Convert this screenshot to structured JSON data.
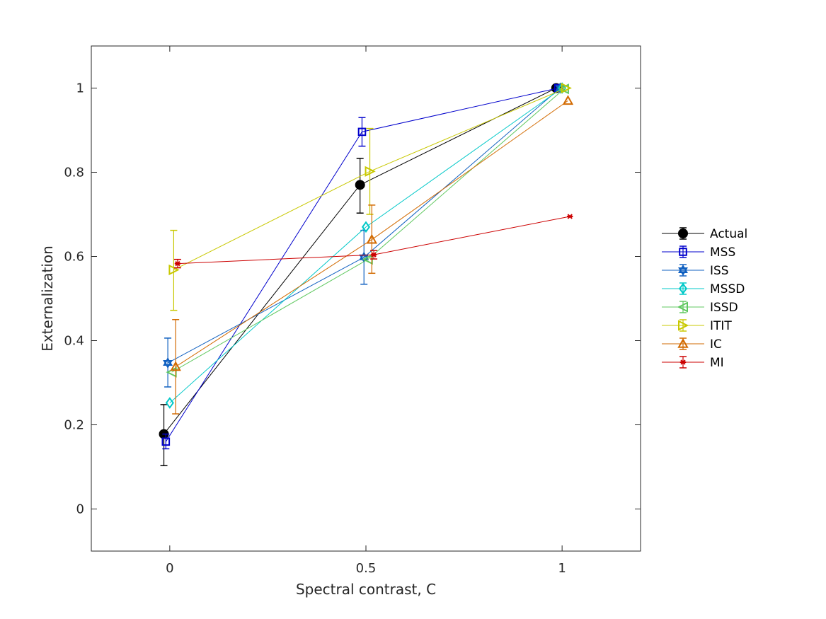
{
  "chart_data": {
    "type": "line",
    "title": "",
    "xlabel": "Spectral contrast, C",
    "ylabel": "Externalization",
    "xlim": [
      -0.2,
      1.2
    ],
    "ylim": [
      -0.1,
      1.1
    ],
    "xticks": [
      0,
      0.5,
      1
    ],
    "xtick_labels": [
      "0",
      "0.5",
      "1"
    ],
    "yticks": [
      0,
      0.2,
      0.4,
      0.6,
      0.8,
      1
    ],
    "ytick_labels": [
      "0",
      "0.2",
      "0.4",
      "0.6",
      "0.8",
      "1"
    ],
    "grid": false,
    "legend_position": "outside-right",
    "series": [
      {
        "name": "Actual",
        "color": "#000000",
        "marker": "filled-circle",
        "x": [
          -0.015,
          0.485,
          0.985
        ],
        "y": [
          0.178,
          0.77,
          1.0
        ],
        "err_low": [
          0.103,
          0.703,
          null
        ],
        "err_high": [
          0.248,
          0.833,
          null
        ]
      },
      {
        "name": "MSS",
        "color": "#0000cc",
        "marker": "square",
        "x": [
          -0.01,
          0.49,
          0.99
        ],
        "y": [
          0.16,
          0.896,
          1.0
        ],
        "err_low": [
          0.143,
          0.862,
          null
        ],
        "err_high": [
          0.178,
          0.93,
          null
        ]
      },
      {
        "name": "ISS",
        "color": "#1060c0",
        "marker": "hexagram",
        "x": [
          -0.005,
          0.495,
          0.995
        ],
        "y": [
          0.347,
          0.598,
          1.0
        ],
        "err_low": [
          0.29,
          0.534,
          null
        ],
        "err_high": [
          0.406,
          0.662,
          null
        ]
      },
      {
        "name": "MSSD",
        "color": "#00c8c8",
        "marker": "diamond",
        "x": [
          0.0,
          0.5,
          1.0
        ],
        "y": [
          0.252,
          0.67,
          1.0
        ],
        "err_low": [
          null,
          null,
          null
        ],
        "err_high": [
          null,
          null,
          null
        ]
      },
      {
        "name": "ISSD",
        "color": "#60c860",
        "marker": "triangle-left",
        "x": [
          0.005,
          0.505,
          1.005
        ],
        "y": [
          0.325,
          0.593,
          0.998
        ],
        "err_low": [
          null,
          null,
          null
        ],
        "err_high": [
          null,
          null,
          null
        ]
      },
      {
        "name": "ITIT",
        "color": "#c8c800",
        "marker": "triangle-right",
        "x": [
          0.01,
          0.51,
          1.01
        ],
        "y": [
          0.568,
          0.802,
          1.0
        ],
        "err_low": [
          0.472,
          0.7,
          null
        ],
        "err_high": [
          0.662,
          0.904,
          null
        ]
      },
      {
        "name": "IC",
        "color": "#d26a00",
        "marker": "triangle-up",
        "x": [
          0.015,
          0.515,
          1.015
        ],
        "y": [
          0.338,
          0.64,
          0.97
        ],
        "err_low": [
          0.226,
          0.56,
          null
        ],
        "err_high": [
          0.45,
          0.722,
          null
        ]
      },
      {
        "name": "MI",
        "color": "#cc0000",
        "marker": "asterisk",
        "x": [
          0.02,
          0.52,
          1.02
        ],
        "y": [
          0.583,
          0.604,
          0.695
        ],
        "err_low": [
          0.573,
          0.594,
          null
        ],
        "err_high": [
          0.593,
          0.614,
          null
        ]
      }
    ]
  }
}
